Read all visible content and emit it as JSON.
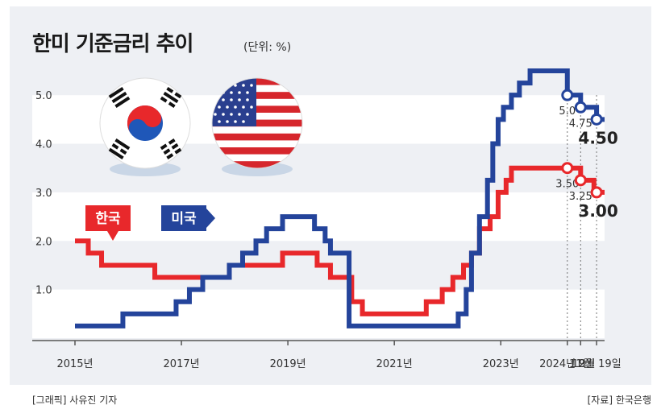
{
  "header": {
    "title": "한미 기준금리 추이",
    "unit": "(단위: %)"
  },
  "footer": {
    "credit_left": "[그래픽] 사유진 기자",
    "credit_right": "[자료] 한국은행"
  },
  "colors": {
    "korea": "#e8282b",
    "us": "#24449b",
    "grid_band": "#ffffff",
    "panel": "#eef0f4"
  },
  "icons": {
    "korea_flag": "korea-flag-icon",
    "us_flag": "us-flag-icon"
  },
  "chart_data": {
    "type": "line",
    "step": true,
    "x_unit": "year",
    "xlim": [
      2015.0,
      2024.95
    ],
    "ylim": [
      0,
      5.5
    ],
    "yticks": [
      "5.0",
      "4.0",
      "3.0",
      "2.0",
      "1.0"
    ],
    "ytick_values": [
      5.0,
      4.0,
      3.0,
      2.0,
      1.0
    ],
    "xticks": [
      {
        "label": "2015년",
        "x": 2015.0
      },
      {
        "label": "2017년",
        "x": 2017.0
      },
      {
        "label": "2019년",
        "x": 2019.0
      },
      {
        "label": "2021년",
        "x": 2021.0
      },
      {
        "label": "2023년",
        "x": 2023.0
      },
      {
        "label": "2024년 9월",
        "x": 2024.25
      },
      {
        "label": "11월",
        "x": 2024.5
      },
      {
        "label": "12월 19일",
        "x": 2024.8
      }
    ],
    "legend": [
      {
        "name": "한국",
        "series": 0
      },
      {
        "name": "미국",
        "series": 1
      }
    ],
    "series": [
      {
        "name": "한국",
        "color": "#e8282b",
        "points": [
          [
            2015.0,
            2.0
          ],
          [
            2015.25,
            1.75
          ],
          [
            2015.5,
            1.5
          ],
          [
            2016.5,
            1.25
          ],
          [
            2017.9,
            1.5
          ],
          [
            2018.9,
            1.75
          ],
          [
            2019.55,
            1.5
          ],
          [
            2019.8,
            1.25
          ],
          [
            2020.2,
            0.75
          ],
          [
            2020.4,
            0.5
          ],
          [
            2021.6,
            0.75
          ],
          [
            2021.9,
            1.0
          ],
          [
            2022.1,
            1.25
          ],
          [
            2022.3,
            1.5
          ],
          [
            2022.45,
            1.75
          ],
          [
            2022.6,
            2.25
          ],
          [
            2022.8,
            2.5
          ],
          [
            2022.95,
            3.0
          ],
          [
            2023.1,
            3.25
          ],
          [
            2023.2,
            3.5
          ],
          [
            2024.5,
            3.25
          ],
          [
            2024.75,
            3.0
          ],
          [
            2024.95,
            3.0
          ]
        ],
        "annotations": [
          {
            "x": 2024.25,
            "y": 3.5,
            "label": "3.50"
          },
          {
            "x": 2024.5,
            "y": 3.25,
            "label": "3.25"
          },
          {
            "x": 2024.8,
            "y": 3.0,
            "label": "3.00",
            "bold": true
          }
        ]
      },
      {
        "name": "미국",
        "color": "#24449b",
        "points": [
          [
            2015.0,
            0.25
          ],
          [
            2015.9,
            0.5
          ],
          [
            2016.9,
            0.75
          ],
          [
            2017.15,
            1.0
          ],
          [
            2017.4,
            1.25
          ],
          [
            2017.9,
            1.5
          ],
          [
            2018.15,
            1.75
          ],
          [
            2018.4,
            2.0
          ],
          [
            2018.6,
            2.25
          ],
          [
            2018.9,
            2.5
          ],
          [
            2019.5,
            2.25
          ],
          [
            2019.7,
            2.0
          ],
          [
            2019.8,
            1.75
          ],
          [
            2020.15,
            0.25
          ],
          [
            2022.2,
            0.5
          ],
          [
            2022.35,
            1.0
          ],
          [
            2022.45,
            1.75
          ],
          [
            2022.6,
            2.5
          ],
          [
            2022.75,
            3.25
          ],
          [
            2022.85,
            4.0
          ],
          [
            2022.95,
            4.5
          ],
          [
            2023.05,
            4.75
          ],
          [
            2023.2,
            5.0
          ],
          [
            2023.35,
            5.25
          ],
          [
            2023.55,
            5.5
          ],
          [
            2024.25,
            5.0
          ],
          [
            2024.5,
            4.75
          ],
          [
            2024.8,
            4.5
          ],
          [
            2024.95,
            4.5
          ]
        ],
        "annotations": [
          {
            "x": 2024.25,
            "y": 5.0,
            "label": "5.0"
          },
          {
            "x": 2024.5,
            "y": 4.75,
            "label": "4.75"
          },
          {
            "x": 2024.8,
            "y": 4.5,
            "label": "4.50",
            "bold": true
          }
        ]
      }
    ]
  }
}
